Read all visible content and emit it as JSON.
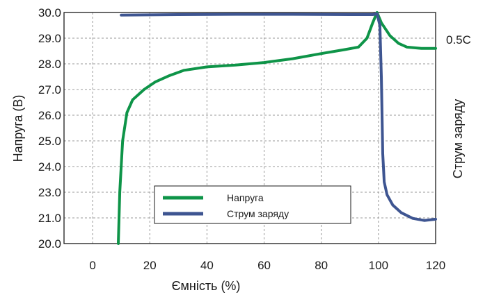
{
  "chart_data": {
    "type": "line",
    "xlabel": "Ємність (%)",
    "ylabel": "Напруга (В)",
    "y2label": "Струм заряду",
    "y2_tick_label": "0.5C",
    "xlim": [
      -10,
      120
    ],
    "x_ticks": [
      0,
      20,
      40,
      60,
      80,
      100,
      120
    ],
    "y_ticks": [
      "30.0",
      "29.0",
      "28.0",
      "27.0",
      "26.0",
      "25.0",
      "24.0",
      "23.0",
      "21.0",
      "20.0"
    ],
    "grid": true,
    "legend_position": "bottom-center",
    "series": [
      {
        "name": "Напруга",
        "color": "#0e9448",
        "points": [
          [
            9,
            0
          ],
          [
            9.5,
            2
          ],
          [
            10.5,
            4
          ],
          [
            12,
            5.1
          ],
          [
            14,
            5.6
          ],
          [
            18,
            6.0
          ],
          [
            22,
            6.3
          ],
          [
            27,
            6.55
          ],
          [
            32,
            6.75
          ],
          [
            40,
            6.88
          ],
          [
            50,
            6.95
          ],
          [
            60,
            7.05
          ],
          [
            70,
            7.2
          ],
          [
            80,
            7.4
          ],
          [
            88,
            7.55
          ],
          [
            93,
            7.65
          ],
          [
            96,
            8.0
          ],
          [
            98,
            8.6
          ],
          [
            99.5,
            9.0
          ],
          [
            101,
            8.6
          ],
          [
            104,
            8.1
          ],
          [
            107,
            7.8
          ],
          [
            110,
            7.65
          ],
          [
            115,
            7.6
          ],
          [
            120,
            7.6
          ]
        ]
      },
      {
        "name": "Струм заряду",
        "color": "#3e5591",
        "points": [
          [
            10,
            8.9
          ],
          [
            30,
            8.92
          ],
          [
            50,
            8.93
          ],
          [
            70,
            8.93
          ],
          [
            90,
            8.92
          ],
          [
            98,
            8.92
          ],
          [
            99.5,
            8.95
          ],
          [
            100.5,
            8.5
          ],
          [
            101,
            6.5
          ],
          [
            101.5,
            3.5
          ],
          [
            102,
            2.4
          ],
          [
            103,
            1.9
          ],
          [
            105,
            1.5
          ],
          [
            108,
            1.2
          ],
          [
            112,
            0.98
          ],
          [
            116,
            0.9
          ],
          [
            120,
            0.95
          ]
        ]
      }
    ]
  }
}
